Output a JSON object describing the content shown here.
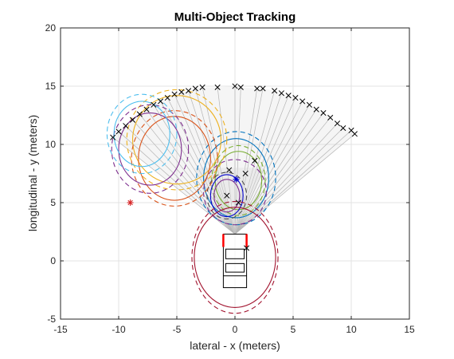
{
  "chart_data": {
    "type": "scatter",
    "title": "Multi-Object Tracking",
    "xlabel": "lateral - x (meters)",
    "ylabel": "longitudinal - y (meters)",
    "xlim": [
      -15,
      15
    ],
    "ylim": [
      -5,
      20
    ],
    "xticks": [
      -15,
      -10,
      -5,
      0,
      5,
      10,
      15
    ],
    "yticks": [
      -5,
      0,
      5,
      10,
      15,
      20
    ],
    "xtick_labels": [
      "-15",
      "-10",
      "-5",
      "0",
      "5",
      "10",
      "15"
    ],
    "ytick_labels": [
      "-5",
      "0",
      "5",
      "10",
      "15",
      "20"
    ],
    "grid": true,
    "sensor_origin": [
      0,
      2.3
    ],
    "beam_fan_color": "#b5b5b5",
    "beam_fan_fill": "#d9d9d9",
    "detections_color": "#000000",
    "detections": [
      [
        -10.5,
        10.6
      ],
      [
        -10.0,
        11.1
      ],
      [
        -9.4,
        11.6
      ],
      [
        -8.8,
        12.1
      ],
      [
        -8.2,
        12.6
      ],
      [
        -7.6,
        13.0
      ],
      [
        -7.0,
        13.4
      ],
      [
        -6.4,
        13.7
      ],
      [
        -5.8,
        14.0
      ],
      [
        -5.2,
        14.3
      ],
      [
        -4.6,
        14.5
      ],
      [
        -4.0,
        14.6
      ],
      [
        -3.4,
        14.8
      ],
      [
        -2.8,
        14.9
      ],
      [
        -1.5,
        14.9
      ],
      [
        0.0,
        15.0
      ],
      [
        0.5,
        14.9
      ],
      [
        1.9,
        14.8
      ],
      [
        2.4,
        14.8
      ],
      [
        3.4,
        14.6
      ],
      [
        4.0,
        14.4
      ],
      [
        4.6,
        14.2
      ],
      [
        5.2,
        14.0
      ],
      [
        5.8,
        13.7
      ],
      [
        6.4,
        13.4
      ],
      [
        7.0,
        13.0
      ],
      [
        7.6,
        12.7
      ],
      [
        8.2,
        12.3
      ],
      [
        8.8,
        11.8
      ],
      [
        9.3,
        11.4
      ],
      [
        10.0,
        11.2
      ],
      [
        10.3,
        10.9
      ],
      [
        -0.5,
        7.8
      ],
      [
        0.9,
        7.5
      ],
      [
        1.7,
        8.6
      ],
      [
        -0.7,
        5.6
      ],
      [
        0.3,
        5.0
      ],
      [
        1.0,
        1.1
      ]
    ],
    "tracks": [
      {
        "x": 0.1,
        "y": 7.0,
        "color": "#0000cc",
        "marker": "*"
      },
      {
        "x": -9.0,
        "y": 5.0,
        "color": "#d62728",
        "marker": "*"
      }
    ],
    "ellipses": [
      {
        "cx": 0.1,
        "cy": 7.1,
        "rx": 2.8,
        "ry": 3.4,
        "color": "#0072bd",
        "dashed": false
      },
      {
        "cx": 0.1,
        "cy": 7.1,
        "rx": 3.4,
        "ry": 4.0,
        "color": "#0072bd",
        "dashed": true
      },
      {
        "cx": 0.3,
        "cy": 6.9,
        "rx": 2.0,
        "ry": 2.5,
        "color": "#77ac30",
        "dashed": false
      },
      {
        "cx": 0.3,
        "cy": 6.9,
        "rx": 2.3,
        "ry": 3.0,
        "color": "#77ac30",
        "dashed": true
      },
      {
        "cx": -0.7,
        "cy": 5.6,
        "rx": 1.1,
        "ry": 1.4,
        "color": "#7e2f8e",
        "dashed": false
      },
      {
        "cx": -0.7,
        "cy": 5.6,
        "rx": 1.4,
        "ry": 1.8,
        "color": "#0000cc",
        "dashed": false
      },
      {
        "cx": -0.7,
        "cy": 5.6,
        "rx": 1.7,
        "ry": 2.0,
        "color": "#4d4d4d",
        "dashed": true
      },
      {
        "cx": 0.0,
        "cy": 5.9,
        "rx": 2.7,
        "ry": 2.8,
        "color": "#7e2f8e",
        "dashed": true
      },
      {
        "cx": -5.0,
        "cy": 10.4,
        "rx": 3.8,
        "ry": 3.8,
        "color": "#edb120",
        "dashed": false
      },
      {
        "cx": -5.0,
        "cy": 10.4,
        "rx": 4.3,
        "ry": 4.3,
        "color": "#edb120",
        "dashed": true
      },
      {
        "cx": -5.2,
        "cy": 8.8,
        "rx": 3.1,
        "ry": 3.6,
        "color": "#d95319",
        "dashed": false
      },
      {
        "cx": -5.2,
        "cy": 8.8,
        "rx": 3.7,
        "ry": 4.1,
        "color": "#d95319",
        "dashed": true
      },
      {
        "cx": -7.3,
        "cy": 9.6,
        "rx": 2.7,
        "ry": 3.1,
        "color": "#7e2f8e",
        "dashed": false
      },
      {
        "cx": -7.3,
        "cy": 9.6,
        "rx": 3.3,
        "ry": 3.8,
        "color": "#7e2f8e",
        "dashed": true
      },
      {
        "cx": -8.0,
        "cy": 10.9,
        "rx": 2.4,
        "ry": 2.8,
        "color": "#4dbeee",
        "dashed": false
      },
      {
        "cx": -8.0,
        "cy": 10.9,
        "rx": 3.0,
        "ry": 3.4,
        "color": "#4dbeee",
        "dashed": true
      },
      {
        "cx": 0.0,
        "cy": 0.3,
        "rx": 3.5,
        "ry": 4.3,
        "color": "#a2142f",
        "dashed": false
      },
      {
        "cx": 0.0,
        "cy": 0.3,
        "rx": 3.7,
        "ry": 4.8,
        "color": "#a2142f",
        "dashed": true
      }
    ],
    "ego_vehicle": {
      "x_min": -1.0,
      "x_max": 1.0,
      "y_min": -2.3,
      "y_max": 2.3,
      "color": "#000000",
      "bumper_color": "#ff0000"
    }
  }
}
